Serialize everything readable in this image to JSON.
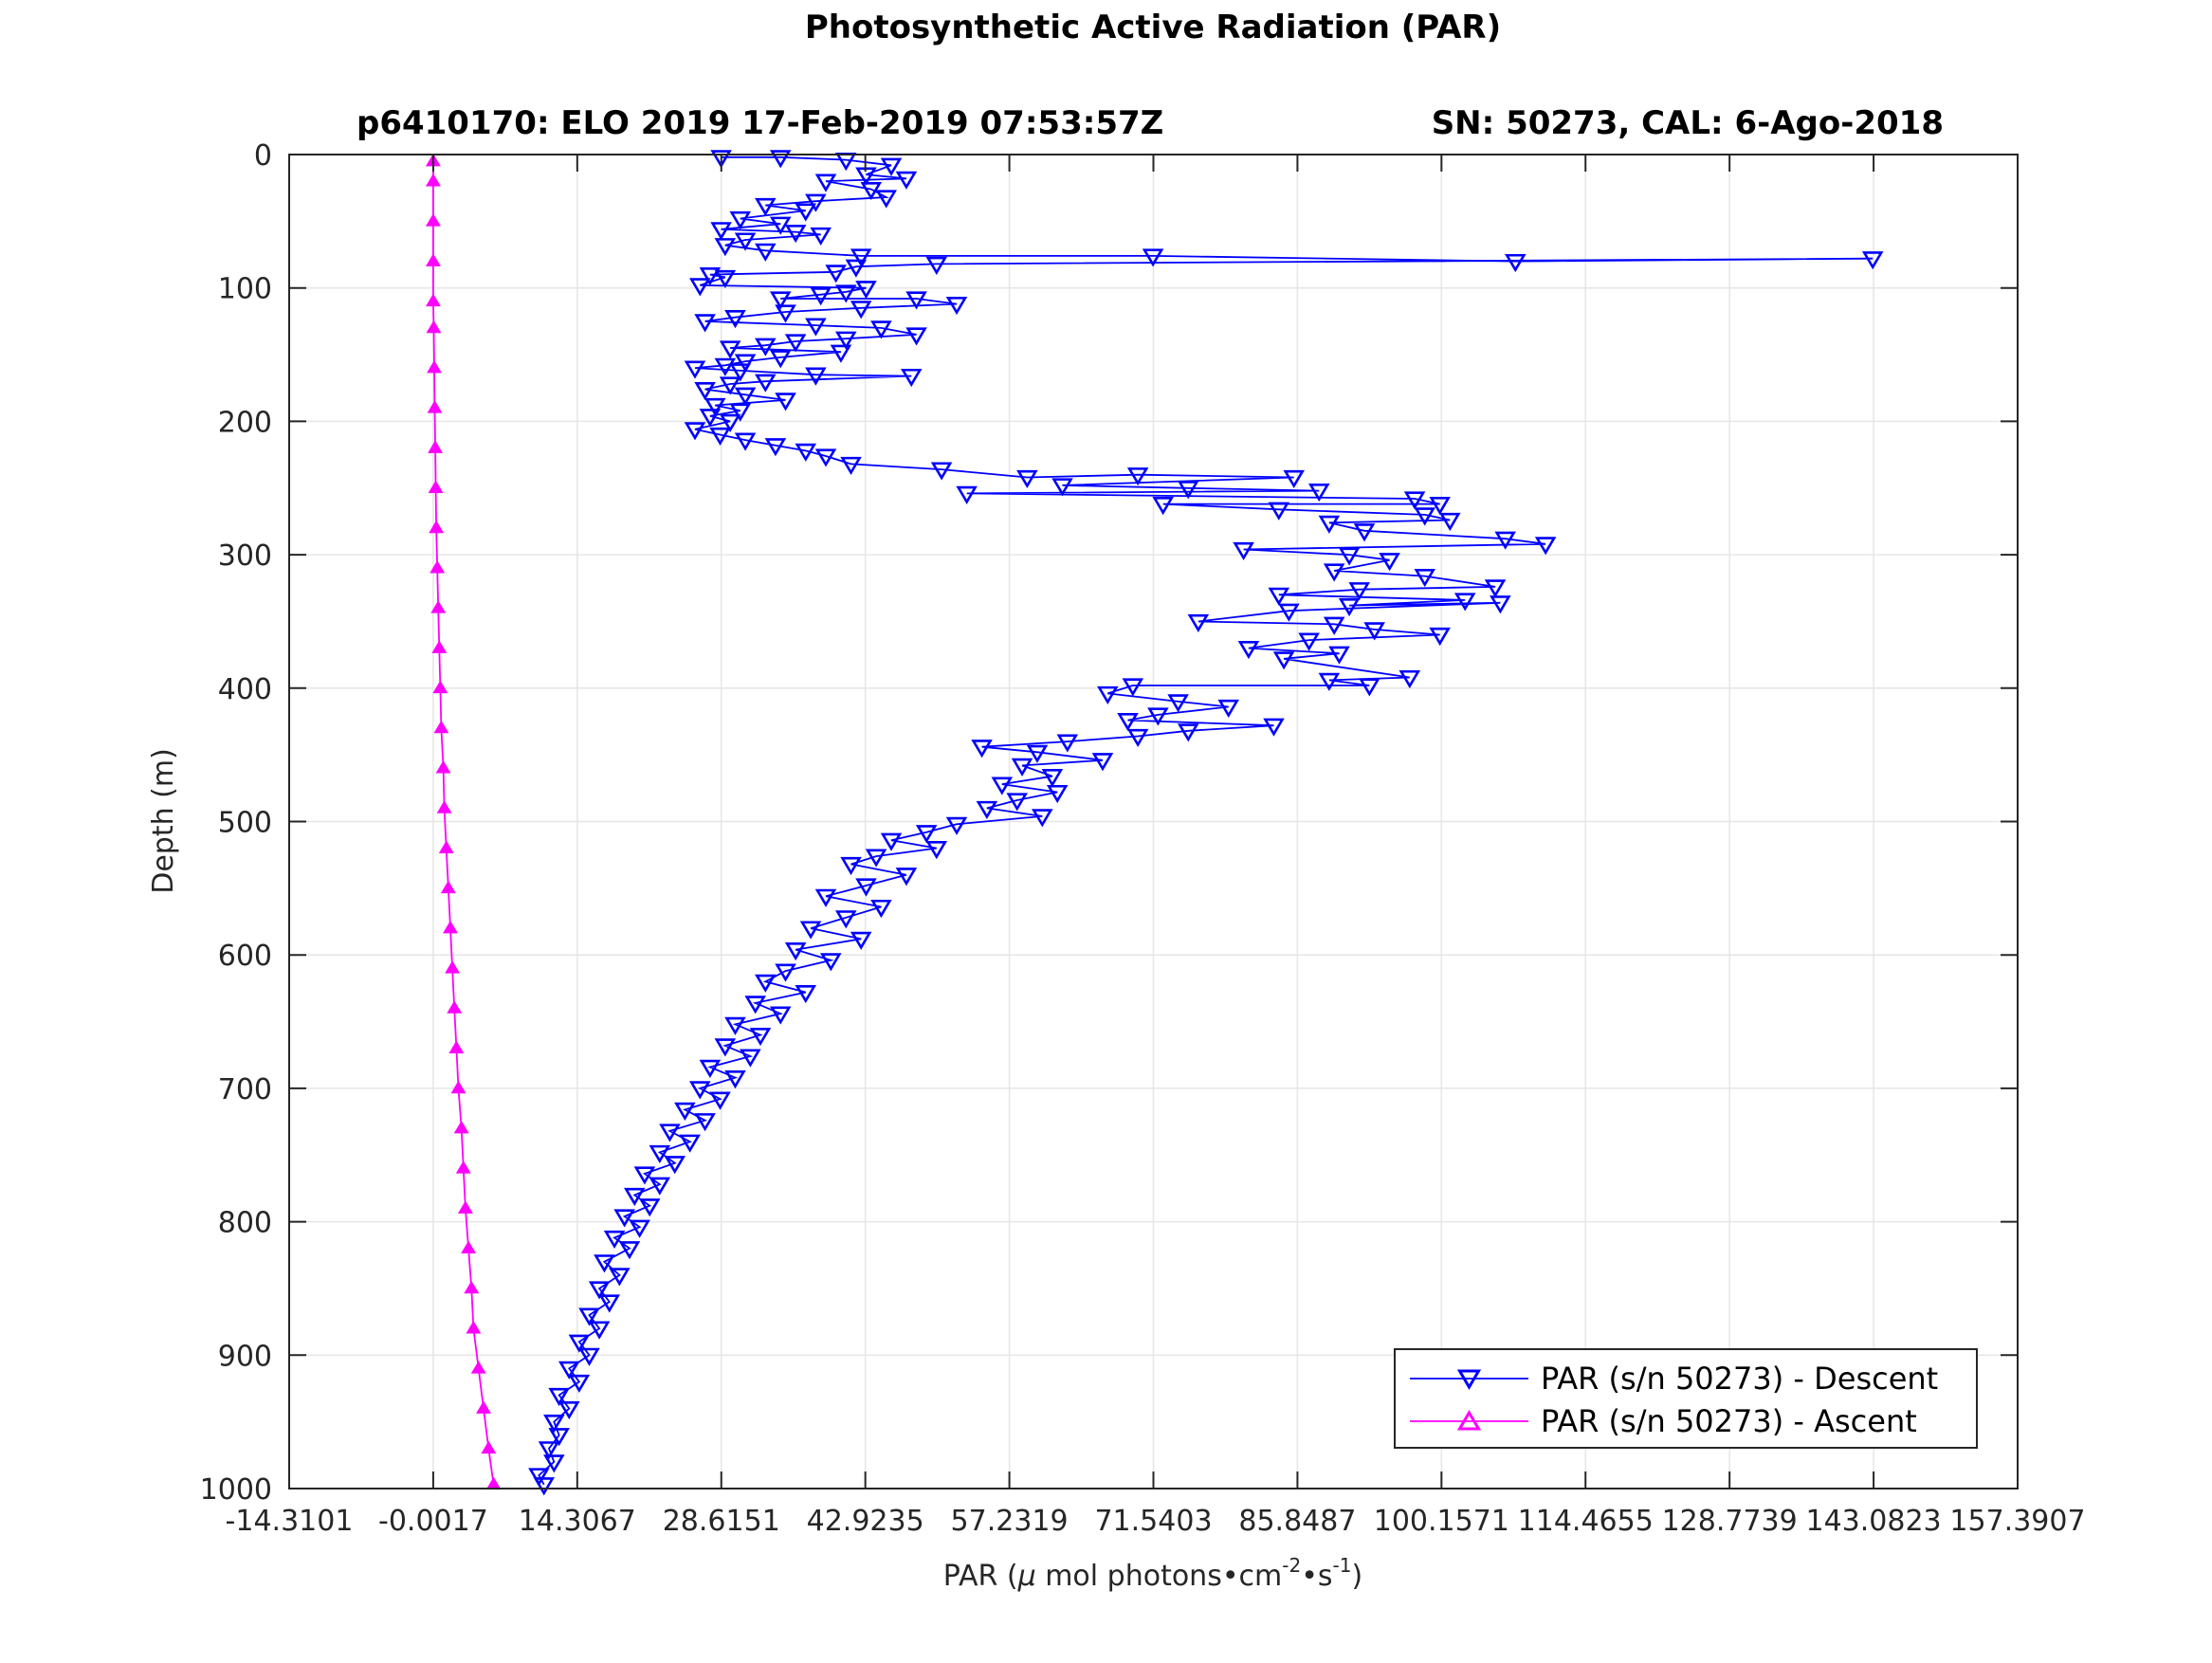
{
  "chart_data": {
    "type": "scatter",
    "title": "Photosynthetic Active Radiation (PAR)",
    "subtitle_left": "p6410170: ELO 2019 17-Feb-2019 07:53:57Z",
    "subtitle_right": "SN: 50273, CAL: 6-Ago-2018",
    "xlabel": {
      "prefix": "PAR (",
      "mu": "μ",
      "mid": " mol photons•cm",
      "exp1": "-2",
      "bullet": "•s",
      "exp2": "-1",
      "suffix": ")"
    },
    "ylabel": "Depth (m)",
    "xlim": [
      -14.3101,
      157.3907
    ],
    "ylim": [
      0,
      1000
    ],
    "y_reversed": true,
    "grid": true,
    "legend_position": "bottom-right",
    "x_ticks": [
      -14.3101,
      -0.0017,
      14.3067,
      28.6151,
      42.9235,
      57.2319,
      71.5403,
      85.8487,
      100.1571,
      114.4655,
      128.7739,
      143.0823,
      157.3907
    ],
    "x_tick_labels": [
      "-14.3101",
      "-0.0017",
      "14.3067",
      "28.6151",
      "42.9235",
      "57.2319",
      "71.5403",
      "85.8487",
      "100.1571",
      "114.4655",
      "128.7739",
      "143.0823",
      "157.3907"
    ],
    "y_ticks": [
      0,
      100,
      200,
      300,
      400,
      500,
      600,
      700,
      800,
      900,
      1000
    ],
    "y_tick_labels": [
      "0",
      "100",
      "200",
      "300",
      "400",
      "500",
      "600",
      "700",
      "800",
      "900",
      "1000"
    ],
    "colors": {
      "descent": "#0000ff",
      "ascent": "#ff00ff",
      "grid": "#e6e6e6",
      "axis": "#262626"
    },
    "series": [
      {
        "name": "PAR (s/n 50273) - Descent",
        "marker": "triangle-down",
        "points": [
          [
            28.6,
            2
          ],
          [
            34.5,
            2
          ],
          [
            41.0,
            4
          ],
          [
            45.5,
            8
          ],
          [
            43.0,
            15
          ],
          [
            47.0,
            18
          ],
          [
            39.0,
            20
          ],
          [
            43.5,
            26
          ],
          [
            45.0,
            32
          ],
          [
            38.0,
            35
          ],
          [
            33.0,
            38
          ],
          [
            37.0,
            42
          ],
          [
            30.5,
            48
          ],
          [
            34.5,
            52
          ],
          [
            28.6,
            56
          ],
          [
            36.0,
            58
          ],
          [
            38.5,
            60
          ],
          [
            31.0,
            64
          ],
          [
            29.0,
            68
          ],
          [
            33.0,
            72
          ],
          [
            42.5,
            76
          ],
          [
            71.5,
            76
          ],
          [
            107.5,
            80
          ],
          [
            143.0,
            78
          ],
          [
            50.0,
            82
          ],
          [
            42.0,
            84
          ],
          [
            40.0,
            88
          ],
          [
            27.5,
            90
          ],
          [
            29.0,
            92
          ],
          [
            26.5,
            98
          ],
          [
            43.0,
            100
          ],
          [
            41.0,
            103
          ],
          [
            38.5,
            105
          ],
          [
            34.5,
            108
          ],
          [
            48.0,
            108
          ],
          [
            52.0,
            112
          ],
          [
            42.5,
            115
          ],
          [
            35.0,
            118
          ],
          [
            30.0,
            122
          ],
          [
            27.0,
            125
          ],
          [
            38.0,
            128
          ],
          [
            44.5,
            130
          ],
          [
            48.0,
            135
          ],
          [
            41.0,
            138
          ],
          [
            36.0,
            140
          ],
          [
            33.0,
            143
          ],
          [
            29.5,
            145
          ],
          [
            40.5,
            148
          ],
          [
            34.5,
            152
          ],
          [
            31.0,
            155
          ],
          [
            29.0,
            158
          ],
          [
            26.0,
            160
          ],
          [
            30.5,
            162
          ],
          [
            38.0,
            165
          ],
          [
            47.5,
            166
          ],
          [
            33.0,
            170
          ],
          [
            29.5,
            172
          ],
          [
            27.0,
            176
          ],
          [
            31.0,
            180
          ],
          [
            35.0,
            184
          ],
          [
            28.0,
            188
          ],
          [
            30.5,
            192
          ],
          [
            27.5,
            196
          ],
          [
            29.5,
            200
          ],
          [
            26.0,
            206
          ],
          [
            28.5,
            210
          ],
          [
            31.0,
            214
          ],
          [
            34.0,
            218
          ],
          [
            37.0,
            222
          ],
          [
            39.0,
            226
          ],
          [
            41.5,
            232
          ],
          [
            50.5,
            236
          ],
          [
            59.0,
            242
          ],
          [
            70.0,
            240
          ],
          [
            85.5,
            242
          ],
          [
            62.5,
            248
          ],
          [
            75.0,
            250
          ],
          [
            88.0,
            252
          ],
          [
            53.0,
            254
          ],
          [
            97.5,
            258
          ],
          [
            100.0,
            262
          ],
          [
            72.5,
            262
          ],
          [
            84.0,
            266
          ],
          [
            98.5,
            270
          ],
          [
            101.0,
            274
          ],
          [
            89.0,
            276
          ],
          [
            92.5,
            282
          ],
          [
            106.5,
            288
          ],
          [
            110.5,
            292
          ],
          [
            80.5,
            296
          ],
          [
            91.0,
            300
          ],
          [
            95.0,
            304
          ],
          [
            89.5,
            312
          ],
          [
            98.5,
            316
          ],
          [
            105.5,
            324
          ],
          [
            92.0,
            326
          ],
          [
            84.0,
            330
          ],
          [
            102.5,
            334
          ],
          [
            91.0,
            338
          ],
          [
            106.0,
            336
          ],
          [
            85.0,
            342
          ],
          [
            76.0,
            350
          ],
          [
            89.5,
            352
          ],
          [
            93.5,
            356
          ],
          [
            100.0,
            360
          ],
          [
            87.0,
            364
          ],
          [
            81.0,
            370
          ],
          [
            90.0,
            374
          ],
          [
            84.5,
            378
          ],
          [
            97.0,
            392
          ],
          [
            89.0,
            394
          ],
          [
            93.0,
            398
          ],
          [
            69.5,
            398
          ],
          [
            67.0,
            404
          ],
          [
            74.0,
            410
          ],
          [
            79.0,
            414
          ],
          [
            72.0,
            420
          ],
          [
            69.0,
            424
          ],
          [
            83.5,
            428
          ],
          [
            75.0,
            432
          ],
          [
            70.0,
            436
          ],
          [
            63.0,
            440
          ],
          [
            54.5,
            444
          ],
          [
            60.0,
            448
          ],
          [
            66.5,
            454
          ],
          [
            58.5,
            458
          ],
          [
            61.5,
            466
          ],
          [
            56.5,
            472
          ],
          [
            62.0,
            478
          ],
          [
            58.0,
            484
          ],
          [
            55.0,
            490
          ],
          [
            60.5,
            496
          ],
          [
            52.0,
            502
          ],
          [
            49.0,
            508
          ],
          [
            45.5,
            514
          ],
          [
            50.0,
            520
          ],
          [
            44.0,
            526
          ],
          [
            41.5,
            532
          ],
          [
            47.0,
            540
          ],
          [
            43.0,
            548
          ],
          [
            39.0,
            556
          ],
          [
            44.5,
            564
          ],
          [
            41.0,
            572
          ],
          [
            37.5,
            580
          ],
          [
            42.5,
            588
          ],
          [
            36.0,
            596
          ],
          [
            39.5,
            604
          ],
          [
            35.0,
            612
          ],
          [
            33.0,
            620
          ],
          [
            37.0,
            628
          ],
          [
            32.0,
            636
          ],
          [
            34.5,
            644
          ],
          [
            30.0,
            652
          ],
          [
            32.5,
            660
          ],
          [
            29.0,
            668
          ],
          [
            31.5,
            676
          ],
          [
            27.5,
            684
          ],
          [
            30.0,
            692
          ],
          [
            26.5,
            700
          ],
          [
            28.5,
            708
          ],
          [
            25.0,
            716
          ],
          [
            27.0,
            724
          ],
          [
            23.5,
            732
          ],
          [
            25.5,
            740
          ],
          [
            22.5,
            748
          ],
          [
            24.0,
            756
          ],
          [
            21.0,
            764
          ],
          [
            22.5,
            772
          ],
          [
            20.0,
            780
          ],
          [
            21.5,
            788
          ],
          [
            19.0,
            796
          ],
          [
            20.5,
            804
          ],
          [
            18.0,
            812
          ],
          [
            19.5,
            820
          ],
          [
            17.0,
            830
          ],
          [
            18.5,
            840
          ],
          [
            16.5,
            850
          ],
          [
            17.5,
            860
          ],
          [
            15.5,
            870
          ],
          [
            16.5,
            880
          ],
          [
            14.5,
            890
          ],
          [
            15.5,
            900
          ],
          [
            13.5,
            910
          ],
          [
            14.5,
            920
          ],
          [
            12.5,
            930
          ],
          [
            13.5,
            940
          ],
          [
            12.0,
            950
          ],
          [
            12.5,
            960
          ],
          [
            11.5,
            970
          ],
          [
            12.0,
            980
          ],
          [
            10.5,
            990
          ],
          [
            11.0,
            997
          ]
        ]
      },
      {
        "name": "PAR (s/n 50273) - Ascent",
        "marker": "triangle-up",
        "points": [
          [
            6.0,
            997
          ],
          [
            5.5,
            970
          ],
          [
            5.0,
            940
          ],
          [
            4.5,
            910
          ],
          [
            4.0,
            880
          ],
          [
            3.8,
            850
          ],
          [
            3.5,
            820
          ],
          [
            3.2,
            790
          ],
          [
            3.0,
            760
          ],
          [
            2.8,
            730
          ],
          [
            2.5,
            700
          ],
          [
            2.3,
            670
          ],
          [
            2.1,
            640
          ],
          [
            1.9,
            610
          ],
          [
            1.7,
            580
          ],
          [
            1.5,
            550
          ],
          [
            1.3,
            520
          ],
          [
            1.1,
            490
          ],
          [
            1.0,
            460
          ],
          [
            0.8,
            430
          ],
          [
            0.7,
            400
          ],
          [
            0.6,
            370
          ],
          [
            0.5,
            340
          ],
          [
            0.4,
            310
          ],
          [
            0.3,
            280
          ],
          [
            0.25,
            250
          ],
          [
            0.2,
            220
          ],
          [
            0.15,
            190
          ],
          [
            0.1,
            160
          ],
          [
            0.05,
            130
          ],
          [
            0.0,
            110
          ],
          [
            0.0,
            80
          ],
          [
            0.0,
            50
          ],
          [
            0.0,
            20
          ],
          [
            0.0,
            5
          ]
        ]
      }
    ]
  }
}
